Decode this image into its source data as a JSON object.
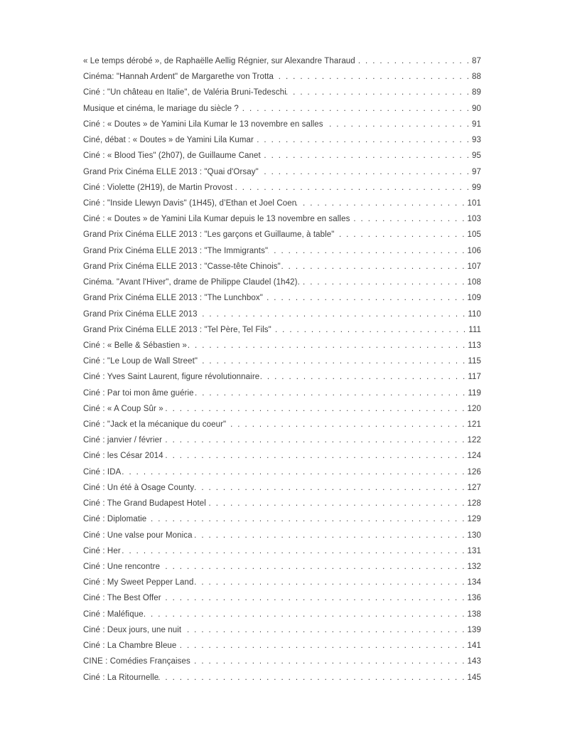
{
  "page": {
    "background_color": "#ffffff",
    "text_color": "#3c3c3c"
  },
  "toc": {
    "entries": [
      {
        "title": "« Le temps dérobé », de Raphaëlle Aellig Régnier, sur Alexandre Tharaud",
        "page": "87"
      },
      {
        "title": "Cinéma: \"Hannah Ardent\" de Margarethe von Trotta",
        "page": "88"
      },
      {
        "title": "Ciné : \"Un château en Italie\", de Valéria Bruni-Tedeschi",
        "page": "89"
      },
      {
        "title": "Musique et cinéma, le mariage du siècle ?",
        "page": "90"
      },
      {
        "title": "Ciné : « Doutes » de Yamini Lila Kumar le 13 novembre en salles",
        "page": "91"
      },
      {
        "title": "Ciné, débat : « Doutes » de Yamini Lila Kumar",
        "page": "93"
      },
      {
        "title": "Ciné : « Blood Ties\" (2h07), de Guillaume Canet",
        "page": "95"
      },
      {
        "title": "Grand Prix Cinéma ELLE 2013 : \"Quai d'Orsay\"",
        "page": "97"
      },
      {
        "title": "Ciné : Violette (2H19), de Martin Provost",
        "page": "99"
      },
      {
        "title": "Ciné : \"Inside Llewyn Davis\" (1H45), d’Ethan et Joel Coen",
        "page": "101"
      },
      {
        "title": "Ciné : « Doutes » de Yamini Lila Kumar depuis le 13 novembre en salles",
        "page": "103"
      },
      {
        "title": "Grand Prix Cinéma ELLE 2013 : \"Les garçons et Guillaume, à table\"",
        "page": "105"
      },
      {
        "title": "Grand Prix Cinéma ELLE 2013 : \"The Immigrants\"",
        "page": "106"
      },
      {
        "title": "Grand Prix Cinéma ELLE 2013 : \"Casse-tête Chinois\"",
        "page": "107"
      },
      {
        "title": "Cinéma. \"Avant l'Hiver\", drame de Philippe Claudel (1h42).",
        "page": "108"
      },
      {
        "title": "Grand Prix Cinéma ELLE 2013 : \"The Lunchbox\"",
        "page": "109"
      },
      {
        "title": "Grand Prix Cinéma ELLE 2013",
        "page": "110"
      },
      {
        "title": "Grand Prix Cinéma ELLE 2013 : \"Tel Père, Tel Fils\"",
        "page": "111"
      },
      {
        "title": "Ciné : « Belle & Sébastien »",
        "page": "113"
      },
      {
        "title": "Ciné : \"Le Loup de Wall Street\"",
        "page": "115"
      },
      {
        "title": "Ciné : Yves Saint Laurent, figure révolutionnaire",
        "page": "117"
      },
      {
        "title": "Ciné : Par toi mon âme guérie",
        "page": "119"
      },
      {
        "title": "Ciné : « A Coup Sûr »",
        "page": "120"
      },
      {
        "title": "Ciné : \"Jack et la mécanique du coeur\"",
        "page": "121"
      },
      {
        "title": "Ciné : janvier / février",
        "page": "122"
      },
      {
        "title": "Ciné : les César 2014",
        "page": "124"
      },
      {
        "title": "Ciné : IDA",
        "page": "126"
      },
      {
        "title": "Ciné : Un été à Osage County",
        "page": "127"
      },
      {
        "title": "Ciné : The Grand Budapest Hotel",
        "page": "128"
      },
      {
        "title": "Ciné : Diplomatie",
        "page": "129"
      },
      {
        "title": "Ciné : Une valse pour Monica",
        "page": "130"
      },
      {
        "title": "Ciné : Her",
        "page": "131"
      },
      {
        "title": "Ciné : Une rencontre",
        "page": "132"
      },
      {
        "title": "Ciné : My Sweet Pepper Land",
        "page": "134"
      },
      {
        "title": "Ciné : The Best Offer",
        "page": "136"
      },
      {
        "title": "Ciné : Maléfique",
        "page": "138"
      },
      {
        "title": "Ciné : Deux jours, une nuit",
        "page": "139"
      },
      {
        "title": "Ciné : La Chambre Bleue",
        "page": "141"
      },
      {
        "title": "CINE : Comédies Françaises",
        "page": "143"
      },
      {
        "title": "Ciné : La Ritournelle",
        "page": "145"
      }
    ]
  }
}
